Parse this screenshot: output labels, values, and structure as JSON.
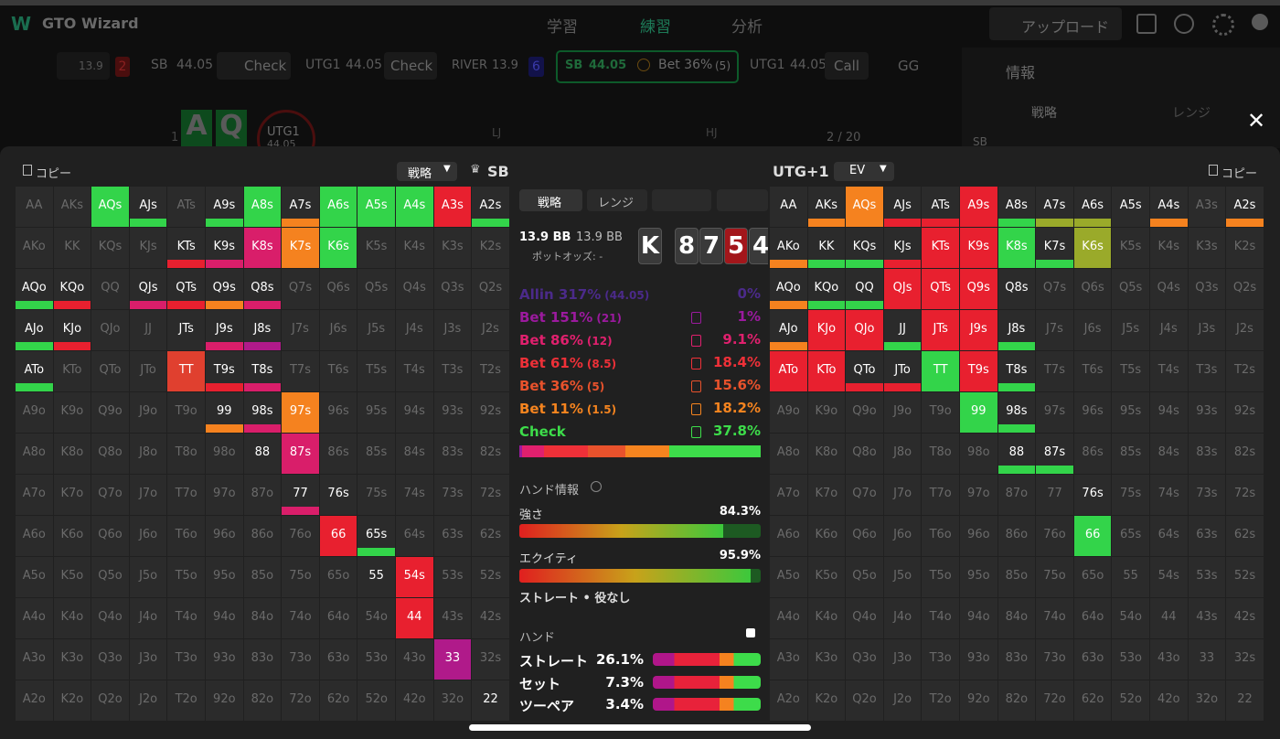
{
  "app": {
    "logo": "GTO Wizard",
    "nav": [
      "学習",
      "練習",
      "分析"
    ],
    "upload": "アップロード"
  },
  "action_bar": {
    "back": {
      "value": "13.9",
      "badge": "2"
    },
    "steps": [
      {
        "player": "SB",
        "stack": "44.05",
        "action": "Check"
      },
      {
        "player": "UTG1",
        "stack": "44.05",
        "action": "Check"
      },
      {
        "player": "RIVER",
        "stack": "13.9",
        "badge": "6"
      },
      {
        "player": "SB",
        "stack": "44.05",
        "action": "Bet 36%",
        "size": "(5)"
      },
      {
        "player": "UTG1",
        "stack": "44.05",
        "action": "Call"
      },
      {
        "player": "GG"
      }
    ]
  },
  "side_panel": {
    "title": "情報",
    "tabs": [
      "戦略",
      "レンジ"
    ],
    "player": "SB"
  },
  "table_bg": {
    "hole": [
      "A",
      "Q"
    ],
    "player": "UTG1",
    "stack": "44.05",
    "count": "1",
    "seats": [
      "LJ",
      "HJ"
    ],
    "progress": "2 / 20"
  },
  "left_header": {
    "copy": "コピー",
    "mode": "戦略",
    "player": "SB"
  },
  "right_header": {
    "player": "UTG+1",
    "mode": "EV",
    "copy": "コピー"
  },
  "hands": [
    [
      "AA",
      "AKs",
      "AQs",
      "AJs",
      "ATs",
      "A9s",
      "A8s",
      "A7s",
      "A6s",
      "A5s",
      "A4s",
      "A3s",
      "A2s"
    ],
    [
      "AKo",
      "KK",
      "KQs",
      "KJs",
      "KTs",
      "K9s",
      "K8s",
      "K7s",
      "K6s",
      "K5s",
      "K4s",
      "K3s",
      "K2s"
    ],
    [
      "AQo",
      "KQo",
      "QQ",
      "QJs",
      "QTs",
      "Q9s",
      "Q8s",
      "Q7s",
      "Q6s",
      "Q5s",
      "Q4s",
      "Q3s",
      "Q2s"
    ],
    [
      "AJo",
      "KJo",
      "QJo",
      "JJ",
      "JTs",
      "J9s",
      "J8s",
      "J7s",
      "J6s",
      "J5s",
      "J4s",
      "J3s",
      "J2s"
    ],
    [
      "ATo",
      "KTo",
      "QTo",
      "JTo",
      "TT",
      "T9s",
      "T8s",
      "T7s",
      "T6s",
      "T5s",
      "T4s",
      "T3s",
      "T2s"
    ],
    [
      "A9o",
      "K9o",
      "Q9o",
      "J9o",
      "T9o",
      "99",
      "98s",
      "97s",
      "96s",
      "95s",
      "94s",
      "93s",
      "92s"
    ],
    [
      "A8o",
      "K8o",
      "Q8o",
      "J8o",
      "T8o",
      "98o",
      "88",
      "87s",
      "86s",
      "85s",
      "84s",
      "83s",
      "82s"
    ],
    [
      "A7o",
      "K7o",
      "Q7o",
      "J7o",
      "T7o",
      "97o",
      "87o",
      "77",
      "76s",
      "75s",
      "74s",
      "73s",
      "72s"
    ],
    [
      "A6o",
      "K6o",
      "Q6o",
      "J6o",
      "T6o",
      "96o",
      "86o",
      "76o",
      "66",
      "65s",
      "64s",
      "63s",
      "62s"
    ],
    [
      "A5o",
      "K5o",
      "Q5o",
      "J5o",
      "T5o",
      "95o",
      "85o",
      "75o",
      "65o",
      "55",
      "54s",
      "53s",
      "52s"
    ],
    [
      "A4o",
      "K4o",
      "Q4o",
      "J4o",
      "T4o",
      "94o",
      "84o",
      "74o",
      "64o",
      "54o",
      "44",
      "43s",
      "42s"
    ],
    [
      "A3o",
      "K3o",
      "Q3o",
      "J3o",
      "T3o",
      "93o",
      "83o",
      "73o",
      "63o",
      "53o",
      "43o",
      "33",
      "32s"
    ],
    [
      "A2o",
      "K2o",
      "Q2o",
      "J2o",
      "T2o",
      "92o",
      "82o",
      "72o",
      "62o",
      "52o",
      "42o",
      "32o",
      "22"
    ]
  ],
  "left_grid": {
    "fills": [
      [
        null,
        null,
        "#33d44a",
        null,
        null,
        null,
        "#33d44a",
        null,
        "#33d44a",
        "#33d44a",
        "#33d44a",
        "#e8202f",
        null
      ],
      [
        null,
        null,
        null,
        null,
        null,
        null,
        "#d91e6a",
        "#f5821f",
        "#33d44a",
        null,
        null,
        null,
        null
      ],
      [
        null,
        null,
        null,
        null,
        null,
        null,
        null,
        null,
        null,
        null,
        null,
        null,
        null
      ],
      [
        null,
        null,
        null,
        null,
        null,
        null,
        null,
        null,
        null,
        null,
        null,
        null,
        null
      ],
      [
        null,
        null,
        null,
        null,
        "#e0402f",
        null,
        null,
        null,
        null,
        null,
        null,
        null,
        null
      ],
      [
        null,
        null,
        null,
        null,
        null,
        null,
        null,
        "#f5821f",
        null,
        null,
        null,
        null,
        null
      ],
      [
        null,
        null,
        null,
        null,
        null,
        null,
        null,
        "#d91e6a",
        null,
        null,
        null,
        null,
        null
      ],
      [
        null,
        null,
        null,
        null,
        null,
        null,
        null,
        null,
        null,
        null,
        null,
        null,
        null
      ],
      [
        null,
        null,
        null,
        null,
        null,
        null,
        null,
        null,
        "#e8202f",
        null,
        null,
        null,
        null
      ],
      [
        null,
        null,
        null,
        null,
        null,
        null,
        null,
        null,
        null,
        null,
        "#e8202f",
        null,
        null
      ],
      [
        null,
        null,
        null,
        null,
        null,
        null,
        null,
        null,
        null,
        null,
        "#e8202f",
        null,
        null
      ],
      [
        null,
        null,
        null,
        null,
        null,
        null,
        null,
        null,
        null,
        null,
        null,
        "#b01a8a",
        null
      ],
      [
        null,
        null,
        null,
        null,
        null,
        null,
        null,
        null,
        null,
        null,
        null,
        null,
        null
      ]
    ],
    "bars": [
      [
        null,
        null,
        null,
        "#33d44a",
        null,
        "#33d44a",
        null,
        "#f5821f",
        null,
        null,
        null,
        null,
        "#33d44a"
      ],
      [
        null,
        null,
        null,
        null,
        "#e8202f",
        "#d91e6a",
        null,
        null,
        null,
        null,
        null,
        null,
        null
      ],
      [
        "#33d44a",
        "#e8202f",
        null,
        "#d91e6a",
        "#e8202f",
        "#f5821f",
        "#d91e6a",
        null,
        null,
        null,
        null,
        null,
        null
      ],
      [
        "#33d44a",
        "#e8202f",
        null,
        null,
        "#2b2b2b",
        "#d91e6a",
        "#b01a8a",
        null,
        null,
        null,
        null,
        null,
        null
      ],
      [
        "#33d44a",
        null,
        null,
        null,
        null,
        "#e8202f",
        "#d91e6a",
        null,
        null,
        null,
        null,
        null,
        null
      ],
      [
        null,
        null,
        null,
        null,
        null,
        "#f5821f",
        "#d91e6a",
        null,
        null,
        null,
        null,
        null,
        null
      ],
      [
        null,
        null,
        null,
        null,
        null,
        null,
        "#2b2b2b",
        null,
        null,
        null,
        null,
        null,
        null
      ],
      [
        null,
        null,
        null,
        null,
        null,
        null,
        null,
        "#d91e6a",
        "#2b2b2b",
        null,
        null,
        null,
        null
      ],
      [
        null,
        null,
        null,
        null,
        null,
        null,
        null,
        null,
        null,
        "#33d44a",
        null,
        null,
        null
      ],
      [
        null,
        null,
        null,
        null,
        null,
        null,
        null,
        null,
        null,
        "#2b2b2b",
        null,
        null,
        null
      ],
      [
        null,
        null,
        null,
        null,
        null,
        null,
        null,
        null,
        null,
        null,
        null,
        null,
        null
      ],
      [
        null,
        null,
        null,
        null,
        null,
        null,
        null,
        null,
        null,
        null,
        null,
        null,
        null
      ],
      [
        null,
        null,
        null,
        null,
        null,
        null,
        null,
        null,
        null,
        null,
        null,
        null,
        "#2b2b2b"
      ]
    ]
  },
  "right_grid": {
    "fills": [
      [
        null,
        null,
        "#f5821f",
        null,
        null,
        "#e8202f",
        null,
        null,
        null,
        null,
        null,
        null,
        null
      ],
      [
        null,
        null,
        null,
        null,
        "#e8202f",
        "#e8202f",
        "#33d44a",
        null,
        "#9aaa2a",
        null,
        null,
        null,
        null
      ],
      [
        null,
        null,
        null,
        "#e8202f",
        "#e8202f",
        "#e8202f",
        null,
        null,
        null,
        null,
        null,
        null,
        null
      ],
      [
        null,
        "#e8202f",
        "#e8202f",
        null,
        "#e8202f",
        "#e8202f",
        null,
        null,
        null,
        null,
        null,
        null,
        null
      ],
      [
        "#e8202f",
        "#e8202f",
        null,
        null,
        "#33d44a",
        "#e8202f",
        null,
        null,
        null,
        null,
        null,
        null,
        null
      ],
      [
        null,
        null,
        null,
        null,
        null,
        "#33d44a",
        null,
        null,
        null,
        null,
        null,
        null,
        null
      ],
      [
        null,
        null,
        null,
        null,
        null,
        null,
        null,
        null,
        null,
        null,
        null,
        null,
        null
      ],
      [
        null,
        null,
        null,
        null,
        null,
        null,
        null,
        null,
        null,
        null,
        null,
        null,
        null
      ],
      [
        null,
        null,
        null,
        null,
        null,
        null,
        null,
        null,
        "#33d44a",
        null,
        null,
        null,
        null
      ],
      [
        null,
        null,
        null,
        null,
        null,
        null,
        null,
        null,
        null,
        null,
        null,
        null,
        null
      ],
      [
        null,
        null,
        null,
        null,
        null,
        null,
        null,
        null,
        null,
        null,
        null,
        null,
        null
      ],
      [
        null,
        null,
        null,
        null,
        null,
        null,
        null,
        null,
        null,
        null,
        null,
        null,
        null
      ],
      [
        null,
        null,
        null,
        null,
        null,
        null,
        null,
        null,
        null,
        null,
        null,
        null,
        null
      ]
    ],
    "bars": [
      [
        "#2b2b2b",
        "#f5821f",
        null,
        "#e8202f",
        "#e8202f",
        null,
        "#33d44a",
        "#9aaa2a",
        "#9aaa2a",
        "#2b2b2b",
        "#f5821f",
        null,
        "#f5821f"
      ],
      [
        "#f5821f",
        "#33d44a",
        "#33d44a",
        "#e8202f",
        null,
        null,
        null,
        "#33d44a",
        null,
        null,
        null,
        null,
        null
      ],
      [
        "#f5821f",
        "#33d44a",
        "#33d44a",
        null,
        null,
        null,
        "#2b2b2b",
        null,
        null,
        null,
        null,
        null,
        null
      ],
      [
        "#f5821f",
        null,
        null,
        "#33d44a",
        null,
        null,
        "#33d44a",
        null,
        null,
        null,
        null,
        null,
        null
      ],
      [
        null,
        null,
        "#e8202f",
        "#e8202f",
        null,
        null,
        "#33d44a",
        null,
        null,
        null,
        null,
        null,
        null
      ],
      [
        null,
        null,
        null,
        null,
        null,
        null,
        "#33d44a",
        null,
        null,
        null,
        null,
        null,
        null
      ],
      [
        null,
        null,
        null,
        null,
        null,
        null,
        "#33d44a",
        "#33d44a",
        null,
        null,
        null,
        null,
        null
      ],
      [
        null,
        null,
        null,
        null,
        null,
        null,
        null,
        null,
        "#2b2b2b",
        null,
        null,
        null,
        null
      ],
      [
        null,
        null,
        null,
        null,
        null,
        null,
        null,
        null,
        null,
        null,
        null,
        null,
        null
      ],
      [
        null,
        null,
        null,
        null,
        null,
        null,
        null,
        null,
        null,
        null,
        null,
        null,
        null
      ],
      [
        null,
        null,
        null,
        null,
        null,
        null,
        null,
        null,
        null,
        null,
        null,
        null,
        null
      ],
      [
        null,
        null,
        null,
        null,
        null,
        null,
        null,
        null,
        null,
        null,
        null,
        null,
        null
      ],
      [
        null,
        null,
        null,
        null,
        null,
        null,
        null,
        null,
        null,
        null,
        null,
        null,
        null
      ]
    ]
  },
  "center": {
    "tabs": [
      "戦略",
      "レンジ"
    ],
    "pot": "13.9 BB",
    "stack": "13.9 BB",
    "pot_odds": "ポットオッズ: -",
    "board": [
      {
        "rank": "K",
        "color": "#3a3a3a"
      },
      {
        "rank": "8",
        "color": "#3a3a3a"
      },
      {
        "rank": "7",
        "color": "#3a3a3a"
      },
      {
        "rank": "5",
        "color": "#a3161b"
      },
      {
        "rank": "4",
        "color": "#3a3a3a"
      }
    ],
    "actions": [
      {
        "name": "Allin 317%",
        "size": "(44.05)",
        "value": 0,
        "label": "0%",
        "color": "#4b2a8a"
      },
      {
        "name": "Bet 151%",
        "size": "(21)",
        "value": 1,
        "label": "1%",
        "color": "#9b1a9e"
      },
      {
        "name": "Bet 86%",
        "size": "(12)",
        "value": 9.1,
        "label": "9.1%",
        "color": "#e0206e"
      },
      {
        "name": "Bet 61%",
        "size": "(8.5)",
        "value": 18.4,
        "label": "18.4%",
        "color": "#ee3038"
      },
      {
        "name": "Bet 36%",
        "size": "(5)",
        "value": 15.6,
        "label": "15.6%",
        "color": "#e8522c"
      },
      {
        "name": "Bet 11%",
        "size": "(1.5)",
        "value": 18.2,
        "label": "18.2%",
        "color": "#f5841f"
      },
      {
        "name": "Check",
        "value": 37.8,
        "label": "37.8%",
        "color": "#3ddc4a"
      }
    ],
    "hand_info": "ハンド情報",
    "strength": {
      "name": "強さ",
      "value": 84.3,
      "label": "84.3%"
    },
    "equity": {
      "name": "エクイティ",
      "value": 95.9,
      "label": "95.9%"
    },
    "made_hand": "ストレート • 役なし",
    "hands_title": "ハンド",
    "hand_classes": [
      {
        "name": "ストレート",
        "label": "26.1%"
      },
      {
        "name": "セット",
        "label": "7.3%"
      },
      {
        "name": "ツーペア",
        "label": "3.4%"
      }
    ]
  }
}
